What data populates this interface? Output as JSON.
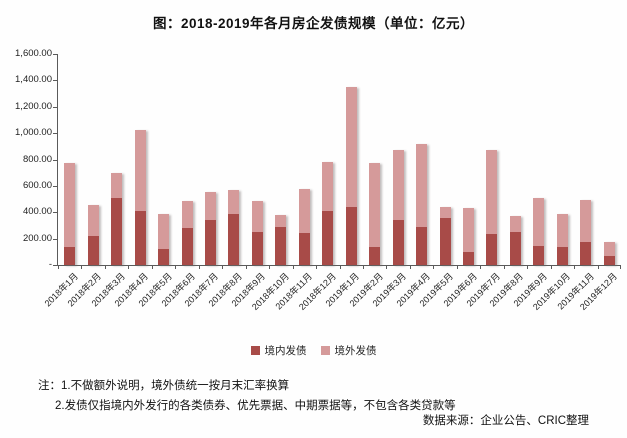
{
  "title": "图：2018-2019年各月房企发债规模（单位：亿元）",
  "chart_data": {
    "type": "bar",
    "stacked": true,
    "title": "图：2018-2019年各月房企发债规模（单位：亿元）",
    "unit": "亿元",
    "categories": [
      "2018年1月",
      "2018年2月",
      "2018年3月",
      "2018年4月",
      "2018年5月",
      "2018年6月",
      "2018年7月",
      "2018年8月",
      "2018年9月",
      "2018年10月",
      "2018年11月",
      "2018年12月",
      "2019年1月",
      "2019年2月",
      "2019年3月",
      "2019年4月",
      "2019年5月",
      "2019年6月",
      "2019年7月",
      "2019年8月",
      "2019年9月",
      "2019年10月",
      "2019年11月",
      "2019年12月"
    ],
    "series": [
      {
        "name": "境内发债",
        "color": "#A84B48",
        "values": [
          140,
          220,
          510,
          410,
          120,
          280,
          340,
          390,
          250,
          285,
          240,
          410,
          440,
          140,
          340,
          290,
          355,
          95,
          235,
          250,
          145,
          140,
          175,
          65
        ]
      },
      {
        "name": "境外发债",
        "color": "#D59A9A",
        "values": [
          635,
          235,
          185,
          615,
          270,
          205,
          215,
          180,
          235,
          95,
          340,
          370,
          910,
          630,
          530,
          630,
          85,
          335,
          635,
          120,
          360,
          245,
          320,
          110
        ]
      }
    ],
    "ylim": [
      0,
      1600
    ],
    "ytick_step": 200,
    "ytick_labels_top_to_bottom": [
      "1,600.00",
      "1,400.00",
      "1,200.00",
      "1,000.00",
      "800.00",
      "600.00",
      "400.00",
      "200.00",
      "-"
    ],
    "grid": false,
    "legend_position": "bottom",
    "xlabel": "",
    "ylabel": ""
  },
  "notes": {
    "line1": "注：1.不做额外说明，境外债统一按月末汇率换算",
    "line2": "2.发债仅指境内外发行的各类债券、优先票据、中期票据等，不包含各类贷款等",
    "source": "数据来源：企业公告、CRIC整理"
  },
  "colors": {
    "domestic_bar": "#A84B48",
    "overseas_bar": "#D59A9A",
    "axis": "#5a5a5a",
    "text": "#1a1a1a"
  }
}
